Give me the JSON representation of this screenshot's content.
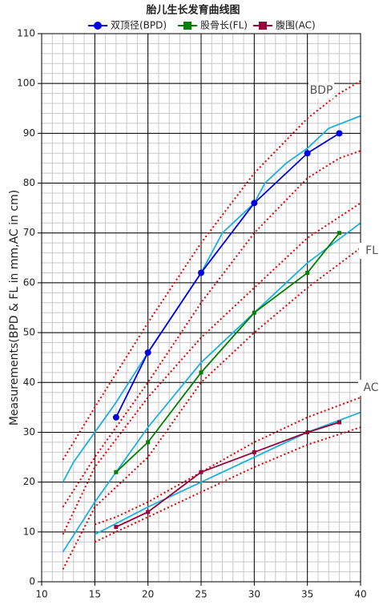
{
  "chart_data": {
    "type": "line",
    "title": "胎儿生长发育曲线图",
    "ylabel": "Measurements(BPD & FL in mm,AC in cm)",
    "xlim": [
      10,
      40
    ],
    "ylim": [
      0,
      110
    ],
    "xticks": [
      10,
      15,
      20,
      25,
      30,
      35,
      40
    ],
    "yticks": [
      0,
      10,
      20,
      30,
      40,
      50,
      60,
      70,
      80,
      90,
      100,
      110
    ],
    "xminor": 1,
    "yminor": 2,
    "grid": true,
    "annotations": [
      "BDP",
      "FL",
      "AC"
    ],
    "series": [
      {
        "name": "双顶径(BPD)",
        "color": "#0000e0",
        "marker": "circle",
        "x": [
          17,
          20,
          25,
          30,
          35,
          38
        ],
        "values": [
          33,
          46,
          62,
          76,
          86,
          90
        ]
      },
      {
        "name": "股骨长(FL)",
        "color": "#008000",
        "marker": "square",
        "x": [
          17,
          20,
          25,
          30,
          35,
          38
        ],
        "values": [
          22,
          28,
          42,
          54,
          62,
          70
        ]
      },
      {
        "name": "腹围(AC)",
        "color": "#99003c",
        "marker": "square",
        "x": [
          17,
          20,
          25,
          30,
          35,
          38
        ],
        "values": [
          11,
          14,
          22,
          26,
          30,
          32
        ]
      },
      {
        "color": "#1ab0e0",
        "style": "solid",
        "x": [
          12,
          13,
          15,
          17,
          20,
          25,
          27,
          30,
          31,
          33,
          35,
          37,
          40
        ],
        "values": [
          20,
          24,
          30,
          36,
          46,
          62,
          70,
          76,
          80,
          84,
          87,
          91,
          93.5
        ]
      },
      {
        "color": "#e00000",
        "style": "dotted",
        "x": [
          12,
          15,
          20,
          25,
          30,
          35,
          38,
          40
        ],
        "values": [
          24.5,
          35,
          52,
          68,
          82,
          93,
          98,
          100.5
        ]
      },
      {
        "color": "#e00000",
        "style": "dotted",
        "x": [
          12,
          15,
          20,
          25,
          30,
          35,
          38,
          40
        ],
        "values": [
          15,
          25,
          40,
          56,
          70,
          81,
          85,
          86.5
        ]
      },
      {
        "color": "#1ab0e0",
        "style": "solid",
        "x": [
          12,
          15,
          20,
          25,
          30,
          35,
          40
        ],
        "values": [
          6,
          16,
          31,
          44,
          54,
          64,
          72
        ]
      },
      {
        "color": "#e00000",
        "style": "dotted",
        "x": [
          12,
          15,
          20,
          25,
          30,
          35,
          40
        ],
        "values": [
          9.5,
          23,
          37,
          49,
          59,
          69,
          76
        ]
      },
      {
        "color": "#e00000",
        "style": "dotted",
        "x": [
          12,
          15,
          20,
          25,
          30,
          35,
          40
        ],
        "values": [
          2.5,
          15,
          25,
          40,
          50,
          59,
          67
        ]
      },
      {
        "color": "#1ab0e0",
        "style": "solid",
        "x": [
          15,
          20,
          25,
          30,
          35,
          40
        ],
        "values": [
          9.5,
          15,
          20,
          25,
          30,
          34
        ]
      },
      {
        "color": "#e00000",
        "style": "dotted",
        "x": [
          15,
          17,
          20,
          25,
          30,
          35,
          40
        ],
        "values": [
          11.5,
          13,
          16,
          22,
          28,
          33,
          37
        ]
      },
      {
        "color": "#e00000",
        "style": "dotted",
        "x": [
          15,
          20,
          25,
          30,
          35,
          40
        ],
        "values": [
          8,
          13,
          18,
          23,
          27.5,
          31
        ]
      }
    ]
  }
}
